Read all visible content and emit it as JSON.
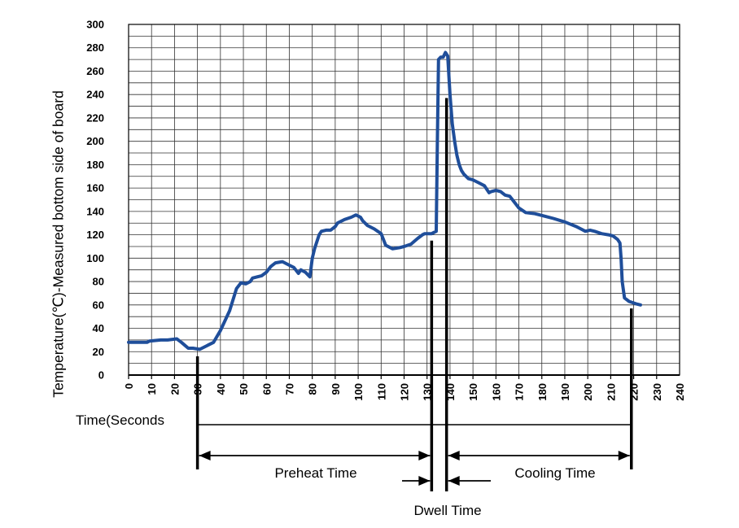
{
  "chart_data": {
    "type": "line",
    "title": "",
    "xlabel": "Time(Seconds",
    "ylabel": "Temperature(℃)-Measured bottom side of board",
    "xlim": [
      0,
      240
    ],
    "ylim": [
      0,
      300
    ],
    "x_ticks": [
      "0",
      "10",
      "20",
      "30",
      "40",
      "50",
      "60",
      "70",
      "80",
      "90",
      "100",
      "110",
      "120",
      "130",
      "140",
      "150",
      "160",
      "170",
      "180",
      "190",
      "200",
      "210",
      "220",
      "230",
      "240"
    ],
    "y_ticks": [
      "0",
      "20",
      "40",
      "60",
      "80",
      "100",
      "120",
      "140",
      "160",
      "180",
      "200",
      "220",
      "240",
      "260",
      "280",
      "300"
    ],
    "grid": true,
    "legend": "none",
    "series_color": "#1f4e9a",
    "series": [
      {
        "x": [
          0,
          8,
          9,
          14,
          17,
          21,
          23,
          26,
          28,
          31,
          34,
          37,
          40,
          44,
          47,
          49,
          51,
          53,
          54,
          56,
          58,
          60,
          62,
          64,
          67,
          70,
          72,
          74,
          75,
          77,
          79,
          80,
          81,
          83,
          84,
          86,
          88,
          90,
          91,
          94,
          97,
          99,
          101,
          102,
          104,
          107,
          110,
          112,
          115,
          118,
          120,
          123,
          126,
          128,
          129,
          130,
          131,
          132,
          133,
          134,
          134.5,
          135,
          136,
          137,
          138,
          139,
          140,
          141,
          142,
          143,
          144,
          145,
          146,
          148,
          150,
          153,
          155,
          157,
          158,
          160,
          162,
          164,
          166,
          168,
          170,
          173,
          177,
          181,
          185,
          190,
          195,
          197,
          199,
          201,
          203,
          206,
          209,
          211,
          213,
          214,
          214.5,
          215,
          216,
          218,
          221,
          223
        ],
        "y": [
          28,
          28,
          29,
          30,
          30,
          31,
          28,
          23,
          23,
          22,
          25,
          28,
          38,
          55,
          74,
          79,
          78,
          80,
          83,
          84,
          85,
          88,
          93,
          96,
          97,
          94,
          92,
          87,
          90,
          88,
          84,
          100,
          108,
          120,
          123,
          124,
          124,
          127,
          130,
          133,
          135,
          137,
          135,
          132,
          128,
          125,
          121,
          111,
          108,
          109,
          110,
          112,
          117,
          120,
          121,
          121,
          121,
          121,
          122,
          123,
          200,
          270,
          272,
          272,
          276,
          273,
          240,
          215,
          200,
          188,
          180,
          175,
          172,
          168,
          167,
          164,
          162,
          156,
          157,
          158,
          157,
          154,
          153,
          148,
          143,
          139,
          138,
          136,
          134,
          131,
          127,
          125,
          123,
          124,
          123,
          121,
          120,
          119,
          116,
          113,
          100,
          80,
          66,
          63,
          61,
          60
        ]
      }
    ],
    "annotations": {
      "preheat": "Preheat Time",
      "dwell": "Dwell Time",
      "cooling": "Cooling Time",
      "markers_x": [
        30,
        132,
        138.5,
        219
      ]
    }
  }
}
